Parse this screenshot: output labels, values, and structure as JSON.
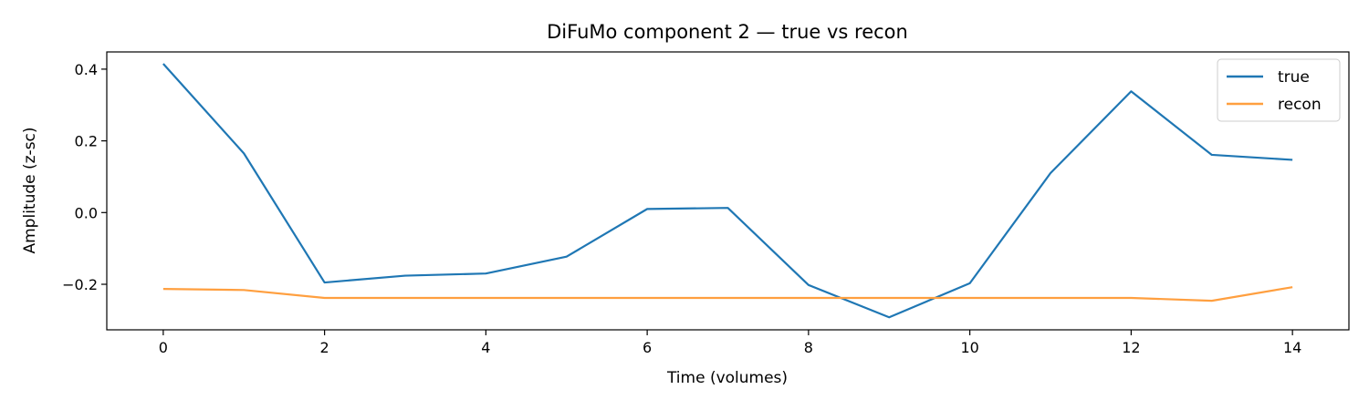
{
  "chart_data": {
    "type": "line",
    "title": "DiFuMo component 2 — true vs recon",
    "xlabel": "Time (volumes)",
    "ylabel": "Amplitude (z-sc)",
    "xlim": [
      -0.7,
      14.7
    ],
    "ylim": [
      -0.327,
      0.448
    ],
    "x_ticks": [
      0,
      2,
      4,
      6,
      8,
      10,
      12,
      14
    ],
    "y_ticks": [
      -0.2,
      0.0,
      0.2,
      0.4
    ],
    "y_tick_labels": [
      "−0.2",
      "0.0",
      "0.2",
      "0.4"
    ],
    "grid": false,
    "legend_position": "top-right",
    "x": [
      0,
      1,
      2,
      3,
      4,
      5,
      6,
      7,
      8,
      9,
      10,
      11,
      12,
      13,
      14
    ],
    "series": [
      {
        "name": "true",
        "color": "#1f77b4",
        "values": [
          0.415,
          0.165,
          -0.195,
          -0.176,
          -0.17,
          -0.123,
          0.01,
          0.013,
          -0.202,
          -0.292,
          -0.197,
          0.11,
          0.338,
          0.161,
          0.147
        ]
      },
      {
        "name": "recon",
        "color": "#ff9f3f",
        "values": [
          -0.213,
          -0.216,
          -0.238,
          -0.238,
          -0.238,
          -0.238,
          -0.238,
          -0.238,
          -0.238,
          -0.238,
          -0.238,
          -0.238,
          -0.238,
          -0.246,
          -0.208
        ]
      }
    ]
  }
}
